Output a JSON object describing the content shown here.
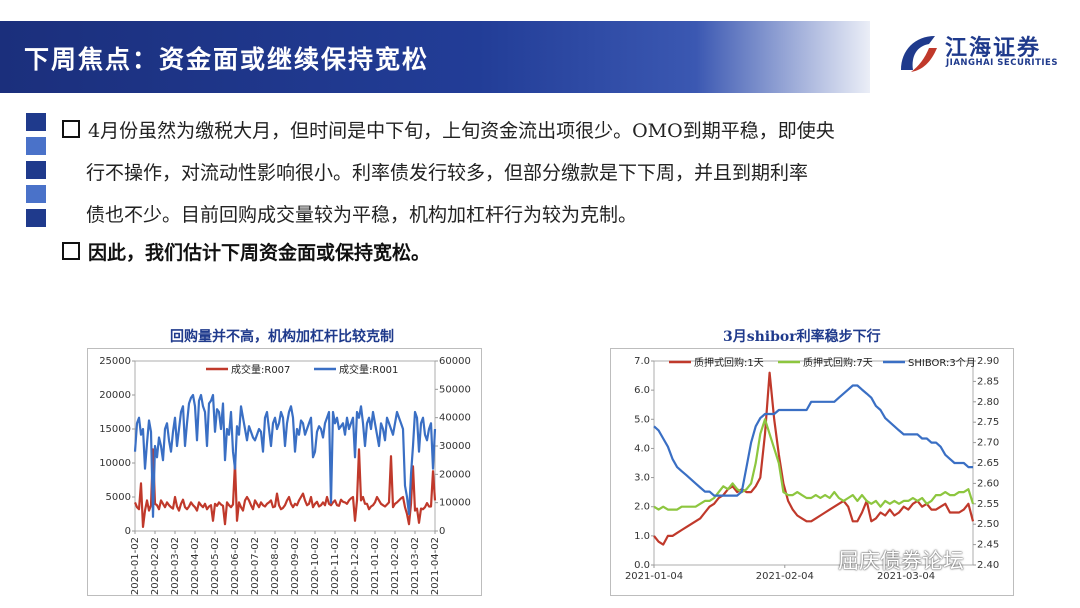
{
  "header": {
    "title": "下周焦点：资金面或继续保持宽松",
    "banner_color": "#223d97",
    "logo_cn": "江海证券",
    "logo_en": "JIANGHAI SECURITIES"
  },
  "body": {
    "para1": [
      "4月份虽然为缴税大月，但时间是中下旬，上旬资金流出项很少。OMO到期平稳，即使央",
      "行不操作，对流动性影响很小。利率债发行较多，但部分缴款是下下周，并且到期利率",
      "债也不少。目前回购成交量较为平稳，机构加杠杆行为较为克制。"
    ],
    "para2": "因此，我们估计下周资金面或保持宽松。"
  },
  "watermark": "屈庆债券论坛",
  "chart_data": [
    {
      "type": "line",
      "title": "回购量并不高，机构加杠杆比较克制",
      "y_left": {
        "min": 0,
        "max": 25000,
        "ticks": [
          "0",
          "5000",
          "10000",
          "15000",
          "20000",
          "25000"
        ]
      },
      "y_right": {
        "min": 0,
        "max": 60000,
        "ticks": [
          "0",
          "10000",
          "20000",
          "30000",
          "40000",
          "50000",
          "60000"
        ]
      },
      "x_ticks": [
        "2020-01-02",
        "2020-02-02",
        "2020-03-02",
        "2020-04-02",
        "2020-05-02",
        "2020-06-02",
        "2020-07-02",
        "2020-08-02",
        "2020-09-02",
        "2020-10-02",
        "2020-11-02",
        "2020-12-02",
        "2021-01-02",
        "2021-02-02",
        "2021-03-02",
        "2021-04-02"
      ],
      "legend_position": "top-center",
      "series": [
        {
          "name": "成交量:R007",
          "axis": "left",
          "color": "#c0392b",
          "values": [
            4200,
            3500,
            3200,
            7000,
            600,
            3000,
            4500,
            3000,
            3800,
            12000,
            4000,
            3800,
            3200,
            4500,
            4000,
            3500,
            4200,
            3800,
            3500,
            3300,
            5000,
            3600,
            3000,
            4000,
            4600,
            3500,
            3200,
            3600,
            4200,
            3800,
            3500,
            3000,
            4200,
            3800,
            3500,
            4000,
            3200,
            3600,
            3800,
            1500,
            4000,
            3700,
            4200,
            3900,
            3700,
            1000,
            4200,
            3800,
            3500,
            3900,
            10000,
            1500,
            4200,
            3500,
            3000,
            4500,
            5000,
            4500,
            3800,
            3200,
            4500,
            4000,
            3500,
            4200,
            3800,
            3600,
            4000,
            4200,
            4500,
            3500,
            3600,
            5500,
            3800,
            3200,
            3400,
            3800,
            4500,
            5000,
            4000,
            3500,
            4000,
            3800,
            4500,
            5000,
            5500,
            4500,
            3800,
            4000,
            5000,
            3500,
            4000,
            4300,
            3600,
            3800,
            4200,
            3800,
            5000,
            4000,
            3800,
            4200,
            4500,
            3800,
            3700,
            4600,
            4300,
            4200,
            4000,
            4500,
            4800,
            5000,
            1500,
            4500,
            12000,
            4500,
            5000,
            4000,
            4000,
            3200,
            3600,
            3800,
            4200,
            5000,
            4500,
            4000,
            3800,
            3600,
            3900,
            4200,
            11000,
            3500,
            4000,
            4200,
            4500,
            4800,
            5000,
            3500,
            2500,
            1000,
            4000,
            9500,
            3000,
            3300,
            1200,
            3300,
            3200,
            3500,
            4100,
            3600,
            3600,
            8800,
            4500
          ]
        },
        {
          "name": "成交量:R001",
          "axis": "right",
          "color": "#3a6fc4",
          "values": [
            28000,
            38000,
            40000,
            34000,
            36000,
            22000,
            31000,
            39000,
            35000,
            5000,
            30000,
            26000,
            33000,
            30000,
            25000,
            36000,
            38000,
            32000,
            28000,
            35000,
            40000,
            30000,
            36000,
            42000,
            44000,
            30000,
            38000,
            45000,
            47000,
            48000,
            44000,
            32000,
            46000,
            48000,
            44000,
            42000,
            30000,
            45000,
            46000,
            48000,
            35000,
            43000,
            42000,
            36000,
            45000,
            25000,
            36000,
            34000,
            42000,
            28000,
            22000,
            37000,
            34000,
            44000,
            40000,
            36000,
            32000,
            37000,
            35000,
            33000,
            32000,
            34000,
            36000,
            35000,
            28000,
            40000,
            42000,
            36000,
            30000,
            38000,
            40000,
            36000,
            38000,
            42000,
            40000,
            30000,
            38000,
            42000,
            44000,
            40000,
            28000,
            36000,
            34000,
            39000,
            38000,
            34000,
            36000,
            38000,
            40000,
            26000,
            28000,
            35000,
            37000,
            36000,
            33000,
            38000,
            40000,
            42000,
            10000,
            42000,
            38000,
            40000,
            36000,
            37000,
            38000,
            34000,
            40000,
            36000,
            38000,
            40000,
            26000,
            42000,
            40000,
            44000,
            38000,
            30000,
            38000,
            40000,
            36000,
            42000,
            38000,
            34000,
            30000,
            38000,
            36000,
            32000,
            40000,
            38000,
            36000,
            34000,
            38000,
            42000,
            40000,
            38000,
            36000,
            16000,
            12000,
            6000,
            20000,
            30000,
            42000,
            40000,
            28000,
            38000,
            40000,
            34000,
            32000,
            36000,
            38000,
            22000,
            36000
          ]
        }
      ]
    },
    {
      "type": "line",
      "title": "3月shibor利率稳步下行",
      "y_left": {
        "min": 0,
        "max": 7,
        "ticks": [
          "0.0",
          "1.0",
          "2.0",
          "3.0",
          "4.0",
          "5.0",
          "6.0",
          "7.0"
        ]
      },
      "y_right": {
        "min": 2.4,
        "max": 2.9,
        "ticks": [
          "2.40",
          "2.45",
          "2.50",
          "2.55",
          "2.60",
          "2.65",
          "2.70",
          "2.75",
          "2.80",
          "2.85",
          "2.90"
        ]
      },
      "x_ticks": [
        "2021-01-04",
        "2021-02-04",
        "2021-03-04"
      ],
      "legend_position": "top",
      "series": [
        {
          "name": "质押式回购:1天",
          "axis": "left",
          "color": "#c0392b",
          "values": [
            1.0,
            0.8,
            0.7,
            1.0,
            1.0,
            1.1,
            1.2,
            1.3,
            1.4,
            1.5,
            1.6,
            1.8,
            2.0,
            2.1,
            2.3,
            2.4,
            2.6,
            2.7,
            2.5,
            2.6,
            2.5,
            2.5,
            2.7,
            3.0,
            4.5,
            6.6,
            5.0,
            3.8,
            2.8,
            2.2,
            1.9,
            1.7,
            1.6,
            1.5,
            1.5,
            1.6,
            1.7,
            1.8,
            1.9,
            2.0,
            2.1,
            2.2,
            2.0,
            1.5,
            1.5,
            1.8,
            2.2,
            1.5,
            1.6,
            1.8,
            1.7,
            1.9,
            1.7,
            1.8,
            2.0,
            1.9,
            2.1,
            2.2,
            2.0,
            2.1,
            1.9,
            1.9,
            2.0,
            2.1,
            1.8,
            1.8,
            1.8,
            1.9,
            2.1,
            1.5
          ]
        },
        {
          "name": "质押式回购:7天",
          "axis": "left",
          "color": "#8dc63f",
          "values": [
            2.0,
            1.9,
            2.0,
            1.9,
            1.9,
            1.9,
            2.0,
            2.0,
            2.0,
            2.0,
            2.1,
            2.2,
            2.2,
            2.3,
            2.5,
            2.7,
            2.6,
            2.8,
            2.6,
            2.5,
            2.6,
            2.8,
            3.5,
            4.5,
            5.0,
            4.5,
            4.0,
            3.5,
            2.5,
            2.4,
            2.4,
            2.5,
            2.4,
            2.3,
            2.3,
            2.4,
            2.3,
            2.4,
            2.3,
            2.5,
            2.3,
            2.2,
            2.3,
            2.4,
            2.2,
            2.4,
            2.2,
            2.1,
            2.2,
            2.0,
            2.2,
            2.1,
            2.2,
            2.1,
            2.2,
            2.2,
            2.3,
            2.2,
            2.3,
            2.1,
            2.2,
            2.4,
            2.4,
            2.5,
            2.4,
            2.4,
            2.5,
            2.5,
            2.6,
            2.1
          ]
        },
        {
          "name": "SHIBOR:3个月",
          "axis": "right",
          "color": "#3a6fc4",
          "values": [
            2.74,
            2.73,
            2.71,
            2.69,
            2.66,
            2.64,
            2.63,
            2.62,
            2.61,
            2.6,
            2.59,
            2.58,
            2.58,
            2.57,
            2.57,
            2.57,
            2.57,
            2.57,
            2.57,
            2.58,
            2.64,
            2.7,
            2.74,
            2.76,
            2.77,
            2.77,
            2.77,
            2.78,
            2.78,
            2.78,
            2.78,
            2.78,
            2.78,
            2.78,
            2.8,
            2.8,
            2.8,
            2.8,
            2.8,
            2.8,
            2.81,
            2.82,
            2.83,
            2.84,
            2.84,
            2.83,
            2.82,
            2.81,
            2.79,
            2.78,
            2.76,
            2.75,
            2.74,
            2.73,
            2.72,
            2.72,
            2.72,
            2.72,
            2.71,
            2.71,
            2.7,
            2.7,
            2.69,
            2.67,
            2.66,
            2.65,
            2.65,
            2.65,
            2.64,
            2.64
          ]
        }
      ]
    }
  ]
}
